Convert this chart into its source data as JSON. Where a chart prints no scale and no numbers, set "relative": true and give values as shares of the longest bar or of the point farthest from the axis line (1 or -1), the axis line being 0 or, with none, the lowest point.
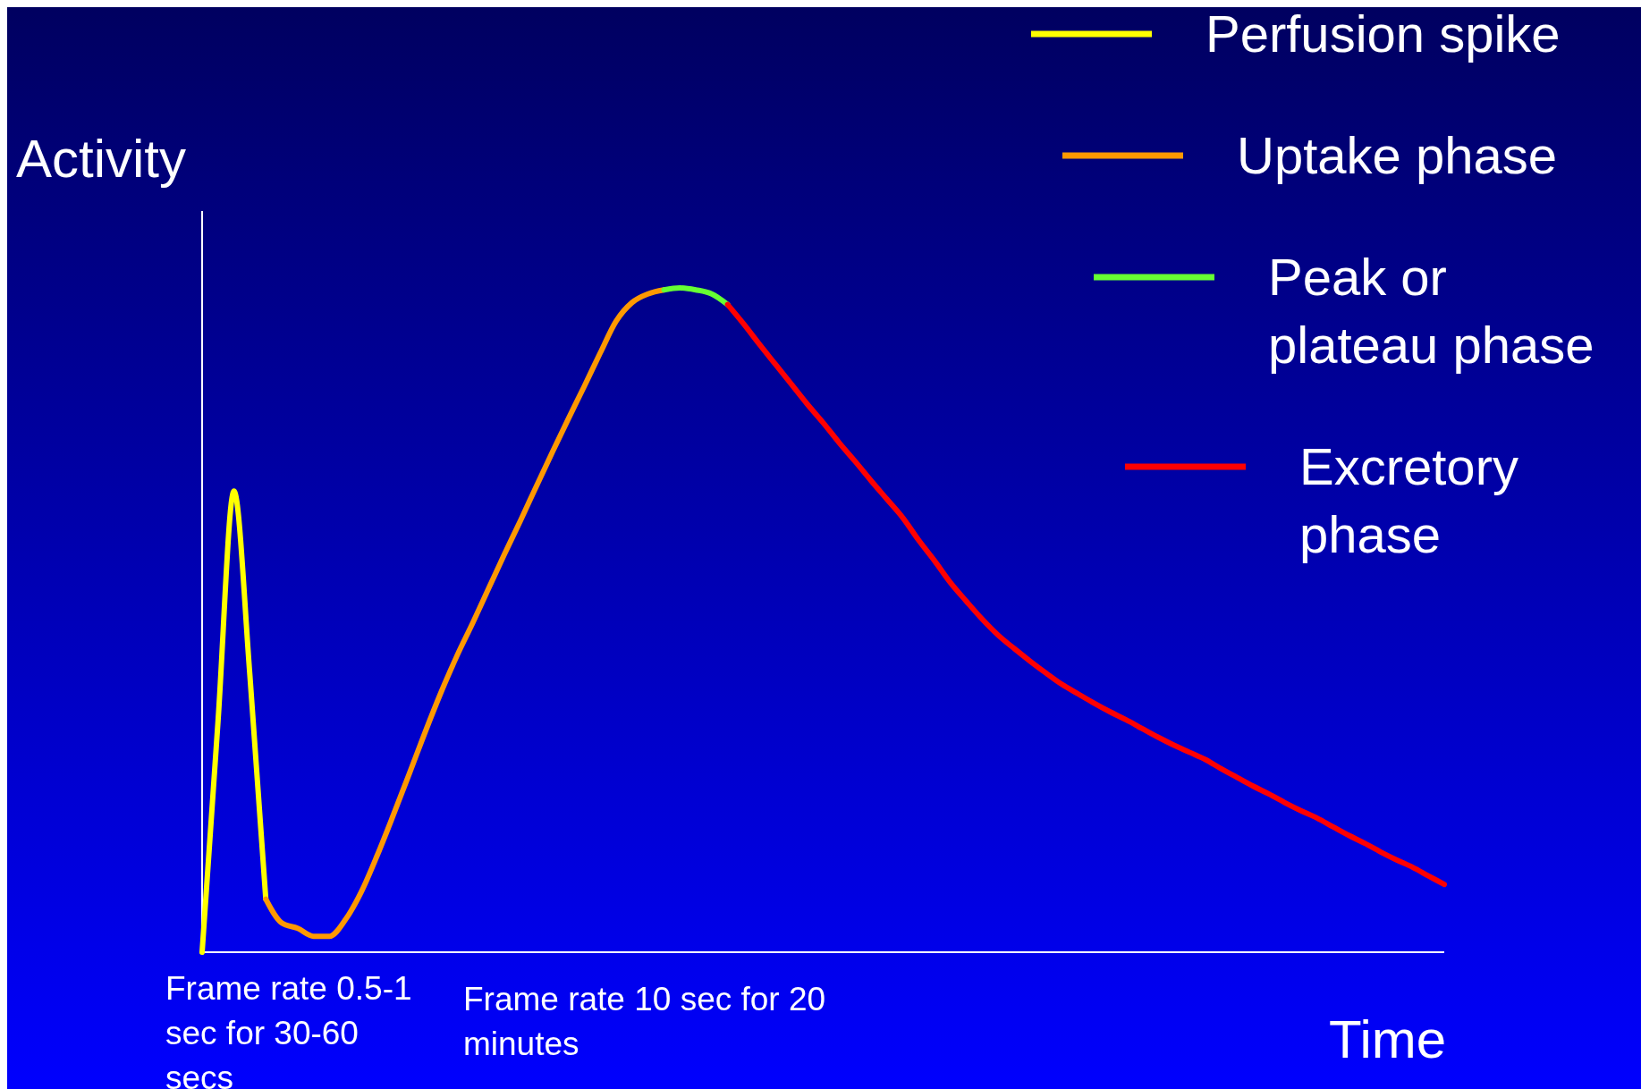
{
  "chart_data": {
    "type": "line",
    "relative": true,
    "ylabel": "Activity",
    "xlabel": "Time",
    "legend": "top right",
    "marker": "none",
    "line_style": "solid",
    "categories": [
      null,
      null,
      null,
      null,
      null,
      null,
      null,
      null,
      null,
      null,
      null,
      null,
      null,
      null,
      null,
      null,
      null,
      null,
      null,
      null,
      null,
      null,
      null,
      null,
      null,
      null,
      null,
      null,
      null,
      null,
      null,
      null,
      null,
      null,
      null,
      null,
      null,
      null,
      null,
      null,
      null,
      null,
      null,
      null,
      null,
      null,
      null,
      null,
      null,
      null,
      null,
      null,
      null,
      null,
      null,
      null,
      null,
      null,
      null,
      null,
      null,
      null,
      null,
      null,
      null,
      null,
      null,
      null,
      null,
      null,
      null,
      null,
      null,
      null,
      null,
      null,
      null,
      null,
      null
    ],
    "series": [
      {
        "name": "Perfusion spike",
        "color": "#ffff00",
        "values": [
          0,
          0.348,
          0.694,
          0.417,
          0.08,
          null,
          null,
          null,
          null,
          null,
          null,
          null,
          null,
          null,
          null,
          null,
          null,
          null,
          null,
          null,
          null,
          null,
          null,
          null,
          null,
          null,
          null,
          null,
          null,
          null,
          null,
          null,
          null,
          null,
          null,
          null,
          null,
          null,
          null,
          null,
          null,
          null,
          null,
          null,
          null,
          null,
          null,
          null,
          null,
          null,
          null,
          null,
          null,
          null,
          null,
          null,
          null,
          null,
          null,
          null,
          null,
          null,
          null,
          null,
          null,
          null,
          null,
          null,
          null,
          null,
          null,
          null,
          null,
          null,
          null,
          null,
          null,
          null,
          null
        ]
      },
      {
        "name": "Uptake phase",
        "color": "#ff9900",
        "values": [
          null,
          null,
          null,
          null,
          0.08,
          0.044,
          0.036,
          0.024,
          0.024,
          0.049,
          0.091,
          0.146,
          0.206,
          0.268,
          0.331,
          0.391,
          0.446,
          0.496,
          0.548,
          0.6,
          0.65,
          0.702,
          0.753,
          0.803,
          0.852,
          0.902,
          0.95,
          0.978,
          0.991,
          0.997,
          null,
          null,
          null,
          null,
          null,
          null,
          null,
          null,
          null,
          null,
          null,
          null,
          null,
          null,
          null,
          null,
          null,
          null,
          null,
          null,
          null,
          null,
          null,
          null,
          null,
          null,
          null,
          null,
          null,
          null,
          null,
          null,
          null,
          null,
          null,
          null,
          null,
          null,
          null,
          null,
          null,
          null,
          null,
          null,
          null,
          null,
          null,
          null,
          null
        ]
      },
      {
        "name": "Peak or plateau phase",
        "color": "#66ff33",
        "values": [
          null,
          null,
          null,
          null,
          null,
          null,
          null,
          null,
          null,
          null,
          null,
          null,
          null,
          null,
          null,
          null,
          null,
          null,
          null,
          null,
          null,
          null,
          null,
          null,
          null,
          null,
          null,
          null,
          null,
          0.997,
          1,
          0.997,
          0.991,
          0.975,
          null,
          null,
          null,
          null,
          null,
          null,
          null,
          null,
          null,
          null,
          null,
          null,
          null,
          null,
          null,
          null,
          null,
          null,
          null,
          null,
          null,
          null,
          null,
          null,
          null,
          null,
          null,
          null,
          null,
          null,
          null,
          null,
          null,
          null,
          null,
          null,
          null,
          null,
          null,
          null,
          null,
          null,
          null,
          null,
          null
        ]
      },
      {
        "name": "Excretory phase",
        "color": "#ff0000",
        "values": [
          null,
          null,
          null,
          null,
          null,
          null,
          null,
          null,
          null,
          null,
          null,
          null,
          null,
          null,
          null,
          null,
          null,
          null,
          null,
          null,
          null,
          null,
          null,
          null,
          null,
          null,
          null,
          null,
          null,
          null,
          null,
          null,
          null,
          0.975,
          0.946,
          0.915,
          0.885,
          0.855,
          0.825,
          0.797,
          0.767,
          0.739,
          0.71,
          0.682,
          0.654,
          0.62,
          0.589,
          0.556,
          0.528,
          0.501,
          0.477,
          0.457,
          0.438,
          0.42,
          0.403,
          0.389,
          0.375,
          0.362,
          0.35,
          0.337,
          0.324,
          0.312,
          0.301,
          0.29,
          0.276,
          0.263,
          0.25,
          0.238,
          0.225,
          0.213,
          0.202,
          0.189,
          0.176,
          0.164,
          0.151,
          0.139,
          0.128,
          0.115,
          0.102
        ]
      }
    ],
    "annotations": [
      "Frame rate 0.5-1 sec for 30-60 secs",
      "Frame rate 10 sec for 20 minutes"
    ]
  }
}
